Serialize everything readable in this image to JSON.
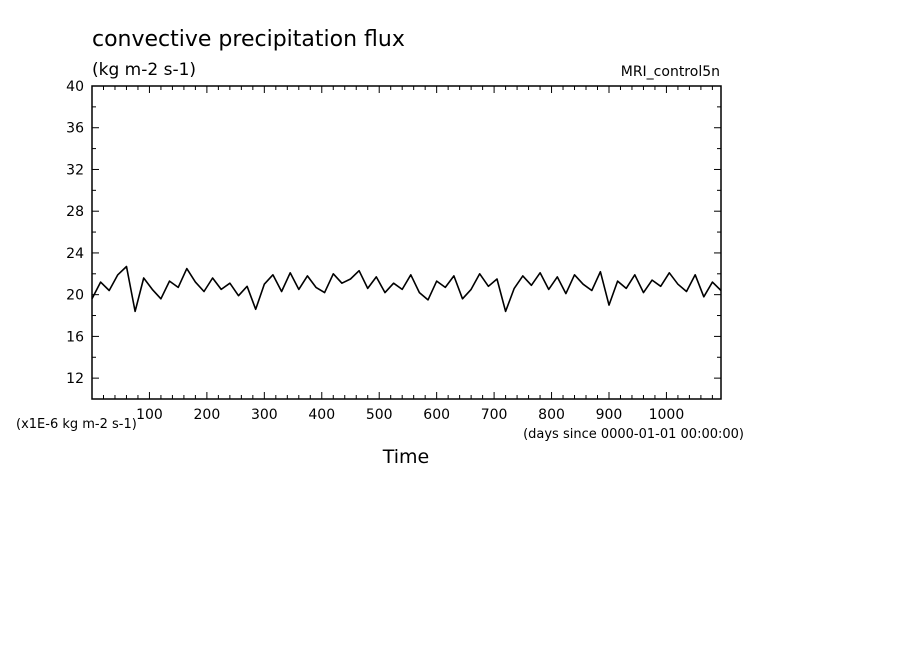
{
  "chart_data": {
    "type": "line",
    "title": "convective precipitation flux",
    "subtitle": "(kg m-2 s-1)",
    "dataset_label": "MRI_control5n",
    "xlabel": "Time",
    "x_units": "(days since 0000-01-01 00:00:00)",
    "y_scale_label": "(x1E-6 kg m-2 s-1)",
    "xlim": [
      0,
      1095
    ],
    "ylim": [
      10,
      40
    ],
    "x_ticks": [
      100,
      200,
      300,
      400,
      500,
      600,
      700,
      800,
      900,
      1000
    ],
    "y_ticks": [
      12,
      16,
      20,
      24,
      28,
      32,
      36,
      40
    ],
    "grid": false,
    "line_color": "#000000",
    "series": [
      {
        "x": [
          0,
          15,
          30,
          45,
          60,
          75,
          90,
          105,
          120,
          135,
          150,
          165,
          180,
          195,
          210,
          225,
          240,
          255,
          270,
          285,
          300,
          315,
          330,
          345,
          360,
          375,
          390,
          405,
          420,
          435,
          450,
          465,
          480,
          495,
          510,
          525,
          540,
          555,
          570,
          585,
          600,
          615,
          630,
          645,
          660,
          675,
          690,
          705,
          720,
          735,
          750,
          765,
          780,
          795,
          810,
          825,
          840,
          855,
          870,
          885,
          900,
          915,
          930,
          945,
          960,
          975,
          990,
          1005,
          1020,
          1035,
          1050,
          1065,
          1080,
          1095
        ],
        "values": [
          19.6,
          21.2,
          20.4,
          21.9,
          22.7,
          18.4,
          21.6,
          20.5,
          19.6,
          21.3,
          20.7,
          22.5,
          21.2,
          20.3,
          21.6,
          20.5,
          21.1,
          19.9,
          20.8,
          18.6,
          21.0,
          21.9,
          20.3,
          22.1,
          20.5,
          21.8,
          20.7,
          20.2,
          22.0,
          21.1,
          21.5,
          22.3,
          20.6,
          21.7,
          20.2,
          21.1,
          20.5,
          21.9,
          20.2,
          19.5,
          21.3,
          20.7,
          21.8,
          19.6,
          20.5,
          22.0,
          20.8,
          21.5,
          18.4,
          20.6,
          21.8,
          20.9,
          22.1,
          20.5,
          21.7,
          20.1,
          21.9,
          21.0,
          20.4,
          22.2,
          19.0,
          21.3,
          20.6,
          21.9,
          20.2,
          21.4,
          20.8,
          22.1,
          21.0,
          20.3,
          21.9,
          19.8,
          21.2,
          20.4
        ]
      }
    ]
  }
}
